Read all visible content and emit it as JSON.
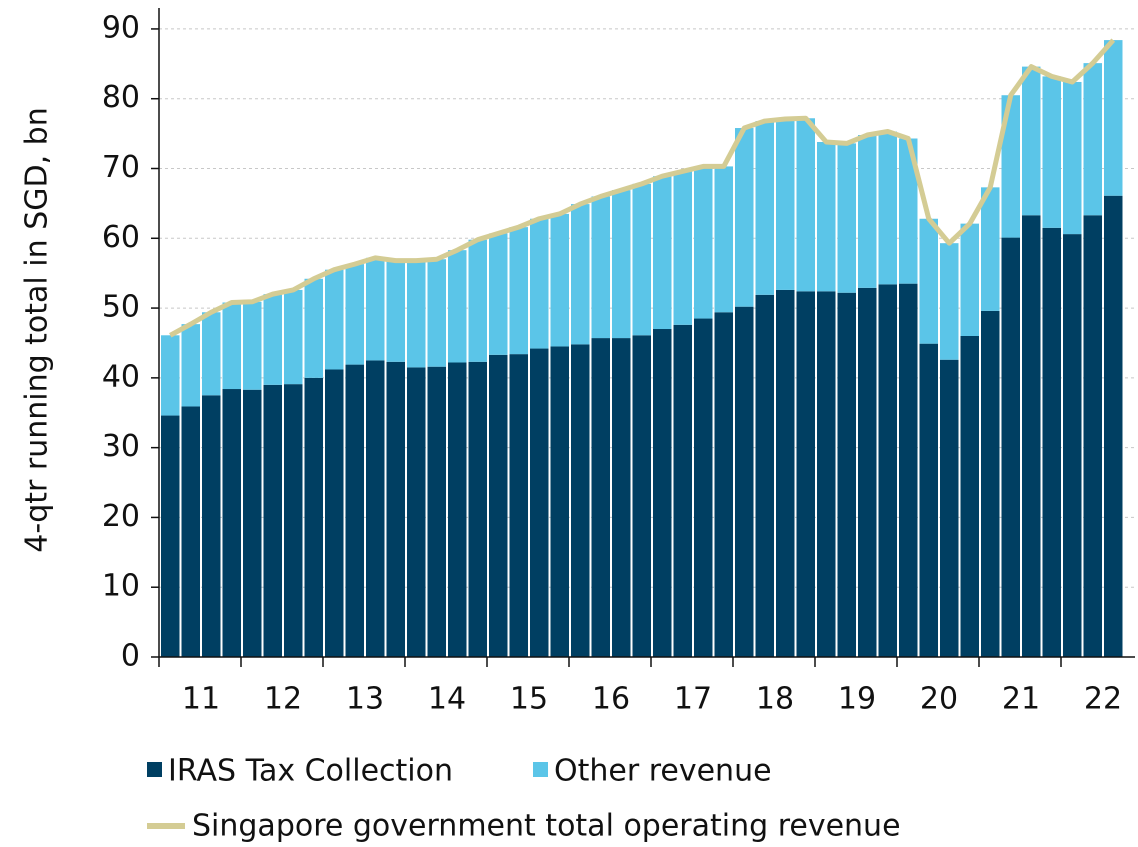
{
  "chart_data": {
    "type": "bar",
    "stacked": true,
    "ylabel": "4-qtr running total in SGD, bn",
    "categories": [
      null,
      "11",
      null,
      null,
      null,
      "12",
      null,
      null,
      null,
      "13",
      null,
      null,
      null,
      "14",
      null,
      null,
      null,
      "15",
      null,
      null,
      null,
      "16",
      null,
      null,
      null,
      "17",
      null,
      null,
      null,
      "18",
      null,
      null,
      null,
      "19",
      null,
      null,
      null,
      "20",
      null,
      null,
      null,
      "21",
      null,
      null,
      null,
      "22",
      null
    ],
    "series": [
      {
        "name": "IRAS Tax Collection",
        "color": "#003f62",
        "values": [
          34.6,
          35.9,
          37.5,
          38.4,
          38.3,
          39.0,
          39.1,
          40.0,
          41.2,
          41.9,
          42.5,
          42.3,
          41.5,
          41.6,
          42.2,
          42.3,
          43.3,
          43.4,
          44.2,
          44.5,
          44.8,
          45.7,
          45.7,
          46.1,
          47.0,
          47.6,
          48.5,
          49.4,
          50.2,
          51.9,
          52.6,
          52.4,
          52.4,
          52.2,
          52.9,
          53.4,
          53.5,
          44.9,
          42.6,
          46.0,
          49.6,
          60.1,
          63.3,
          61.5,
          60.6,
          63.3,
          66.1
        ]
      },
      {
        "name": "Other revenue",
        "color": "#5bc5e8",
        "values": [
          11.5,
          11.8,
          11.9,
          12.4,
          12.6,
          13.0,
          13.5,
          14.2,
          14.3,
          14.4,
          14.7,
          14.5,
          15.3,
          15.4,
          16.1,
          17.5,
          17.4,
          18.2,
          18.6,
          19.0,
          20.1,
          20.3,
          21.2,
          21.7,
          21.9,
          22.0,
          21.8,
          20.9,
          25.6,
          24.9,
          24.5,
          24.8,
          21.4,
          21.4,
          21.9,
          21.9,
          20.8,
          17.9,
          16.7,
          16.1,
          17.7,
          20.4,
          21.3,
          21.7,
          21.8,
          21.8,
          22.3
        ]
      },
      {
        "name": "Singapore government total operating revenue",
        "type": "line",
        "color": "#d4cc94",
        "values": [
          46.1,
          47.7,
          49.4,
          50.8,
          50.9,
          52.0,
          52.6,
          54.2,
          55.5,
          56.3,
          57.2,
          56.8,
          56.8,
          57.0,
          58.3,
          59.8,
          60.7,
          61.6,
          62.8,
          63.5,
          64.9,
          66.0,
          66.9,
          67.8,
          68.9,
          69.6,
          70.3,
          70.3,
          75.8,
          76.8,
          77.1,
          77.2,
          73.8,
          73.6,
          74.8,
          75.3,
          74.3,
          62.8,
          59.3,
          62.1,
          67.3,
          80.5,
          84.6,
          83.2,
          82.4,
          85.1,
          88.4
        ]
      }
    ],
    "ylim": [
      0,
      93
    ],
    "yticks": [
      0,
      10,
      20,
      30,
      40,
      50,
      60,
      70,
      80,
      90
    ],
    "grid": true
  }
}
